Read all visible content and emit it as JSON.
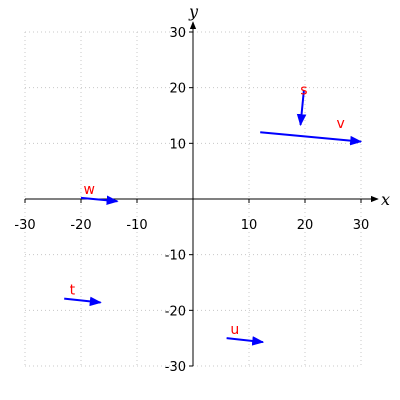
{
  "chart_data": {
    "type": "vector-field",
    "title": "",
    "xlabel": "x",
    "ylabel": "y",
    "xlim": [
      -30,
      30
    ],
    "ylim": [
      -30,
      30
    ],
    "grid": true,
    "x_ticks": [
      -30,
      -20,
      -10,
      10,
      20,
      30
    ],
    "y_ticks": [
      -30,
      -20,
      -10,
      10,
      20,
      30
    ],
    "x_tick_labels": [
      "-30",
      "-20",
      "-10",
      "10",
      "20",
      "30"
    ],
    "y_tick_labels": [
      "-30",
      "-20",
      "-10",
      "10",
      "20",
      "30"
    ],
    "vector_color": "#0000ff",
    "label_color": "#ff0000",
    "vectors": [
      {
        "label": "s",
        "start": [
          19.8,
          19.5
        ],
        "end": [
          19.2,
          13.3
        ]
      },
      {
        "label": "v",
        "start": [
          12.0,
          12.0
        ],
        "end": [
          30.0,
          10.3
        ]
      },
      {
        "label": "w",
        "start": [
          -20.0,
          0.2
        ],
        "end": [
          -13.5,
          -0.4
        ]
      },
      {
        "label": "t",
        "start": [
          -23.0,
          -17.9
        ],
        "end": [
          -16.5,
          -18.6
        ]
      },
      {
        "label": "u",
        "start": [
          6.0,
          -25.0
        ],
        "end": [
          12.5,
          -25.7
        ]
      }
    ]
  }
}
